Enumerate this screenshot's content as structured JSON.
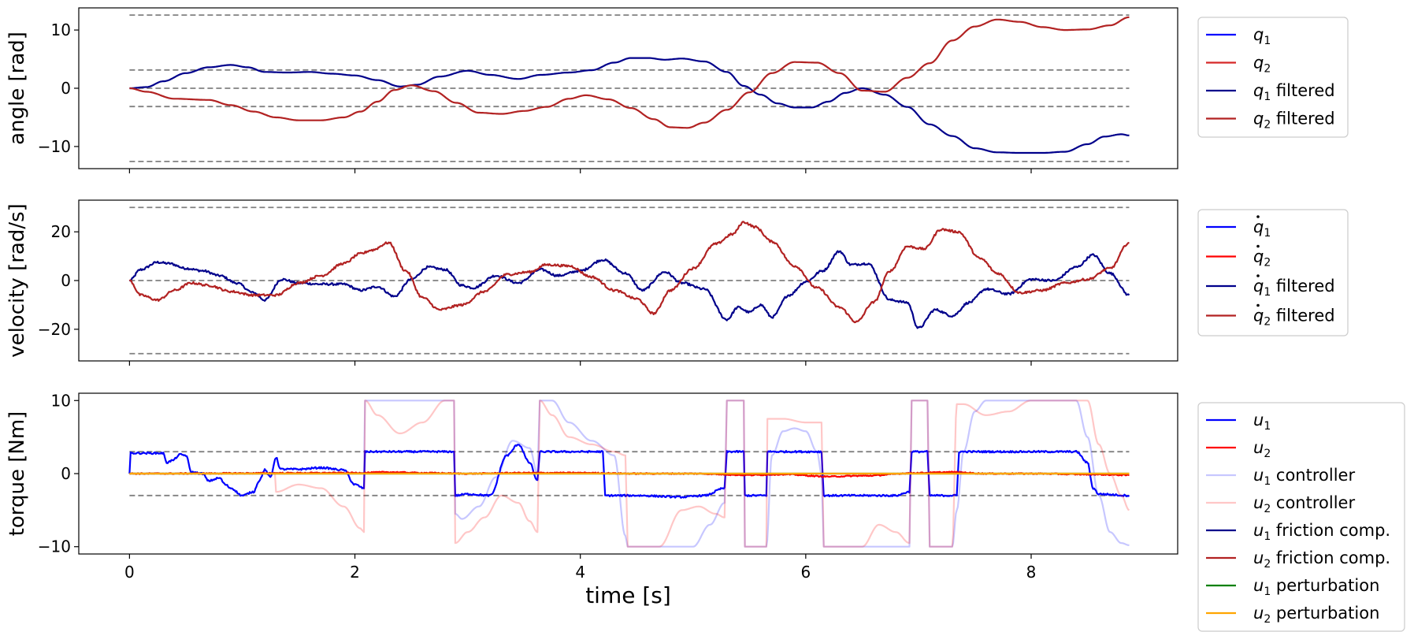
{
  "chart_data": [
    {
      "type": "line",
      "ylabel": "angle [rad]",
      "xlim": [
        -0.45,
        9.3
      ],
      "ylim": [
        -13.8,
        13.8
      ],
      "yticks": [
        -10,
        0,
        10
      ],
      "xticks": [
        0,
        2,
        4,
        6,
        8
      ],
      "show_xtick_labels": false,
      "legend": "outside-right",
      "hlines": [
        12.57,
        3.14,
        0,
        -3.14,
        -12.57
      ],
      "series": [
        {
          "name": "q1",
          "sym": "q",
          "sub": "1",
          "dot": false,
          "suffix": "",
          "color": "#0000ff",
          "alpha": 1,
          "legend_only": true
        },
        {
          "name": "q2",
          "sym": "q",
          "sub": "2",
          "dot": false,
          "suffix": "",
          "color": "#d62728",
          "alpha": 1,
          "legend_only": true
        },
        {
          "name": "q1 filtered",
          "sym": "q",
          "sub": "1",
          "dot": false,
          "suffix": " filtered",
          "color": "#00008b",
          "alpha": 1,
          "x": [
            0,
            0.15,
            0.3,
            0.5,
            0.7,
            0.9,
            1.05,
            1.2,
            1.4,
            1.6,
            1.8,
            2.0,
            2.2,
            2.4,
            2.55,
            2.75,
            3.0,
            3.2,
            3.45,
            3.65,
            3.9,
            4.1,
            4.3,
            4.45,
            4.6,
            4.75,
            4.9,
            5.1,
            5.3,
            5.45,
            5.6,
            5.75,
            5.9,
            6.05,
            6.2,
            6.35,
            6.5,
            6.7,
            6.9,
            7.1,
            7.3,
            7.5,
            7.7,
            7.9,
            8.1,
            8.3,
            8.5,
            8.65,
            8.8,
            8.87
          ],
          "y": [
            0,
            0.2,
            1.2,
            2.6,
            3.6,
            4.0,
            3.6,
            2.8,
            2.7,
            2.8,
            2.5,
            2.2,
            1.4,
            0.3,
            0.6,
            2.0,
            3.0,
            2.3,
            1.6,
            2.3,
            2.7,
            3.1,
            4.4,
            5.2,
            5.2,
            4.9,
            5.1,
            4.6,
            2.8,
            0.4,
            -1.1,
            -2.6,
            -3.3,
            -3.3,
            -2.3,
            -0.8,
            0,
            -1.1,
            -3.2,
            -6.2,
            -8.2,
            -10.3,
            -11.0,
            -11.1,
            -11.1,
            -10.9,
            -9.6,
            -8.3,
            -7.9,
            -8.1
          ]
        },
        {
          "name": "q2 filtered",
          "sym": "q",
          "sub": "2",
          "dot": false,
          "suffix": " filtered",
          "color": "#b22222",
          "alpha": 1,
          "x": [
            0,
            0.15,
            0.4,
            0.7,
            0.9,
            1.1,
            1.3,
            1.5,
            1.7,
            1.9,
            2.05,
            2.2,
            2.35,
            2.5,
            2.7,
            2.9,
            3.1,
            3.3,
            3.5,
            3.7,
            3.9,
            4.05,
            4.25,
            4.45,
            4.65,
            4.8,
            4.95,
            5.1,
            5.3,
            5.5,
            5.7,
            5.9,
            6.1,
            6.3,
            6.5,
            6.7,
            6.9,
            7.1,
            7.3,
            7.5,
            7.7,
            7.9,
            8.1,
            8.3,
            8.5,
            8.7,
            8.87
          ],
          "y": [
            0,
            -0.6,
            -1.8,
            -2.0,
            -2.9,
            -4.0,
            -5.0,
            -5.5,
            -5.5,
            -5.0,
            -4.0,
            -2.3,
            -0.3,
            0.5,
            -0.5,
            -2.5,
            -4.2,
            -4.4,
            -3.9,
            -3.2,
            -1.8,
            -1.2,
            -1.9,
            -3.4,
            -5.3,
            -6.7,
            -6.8,
            -5.9,
            -3.7,
            -0.7,
            2.6,
            4.5,
            4.4,
            2.6,
            -0.4,
            -0.6,
            1.8,
            4.3,
            8.2,
            10.6,
            11.8,
            11.4,
            10.5,
            10.0,
            10.1,
            10.8,
            12.2
          ]
        }
      ]
    },
    {
      "type": "line",
      "ylabel": "velocity [rad/s]",
      "xlim": [
        -0.45,
        9.3
      ],
      "ylim": [
        -33,
        33
      ],
      "yticks": [
        -20,
        0,
        20
      ],
      "xticks": [
        0,
        2,
        4,
        6,
        8
      ],
      "show_xtick_labels": false,
      "legend": "outside-right",
      "hlines": [
        30,
        0,
        -30
      ],
      "series": [
        {
          "name": "q̇1",
          "sym": "q",
          "sub": "1",
          "dot": true,
          "suffix": "",
          "color": "#0000ff",
          "alpha": 1,
          "legend_only": true
        },
        {
          "name": "q̇2",
          "sym": "q",
          "sub": "2",
          "dot": true,
          "suffix": "",
          "color": "#ff0000",
          "alpha": 1,
          "legend_only": true
        },
        {
          "name": "q̇1 filtered",
          "sym": "q",
          "sub": "1",
          "dot": true,
          "suffix": " filtered",
          "color": "#00008b",
          "alpha": 1,
          "jitter": 0.45,
          "x": [
            0,
            0.1,
            0.25,
            0.35,
            0.5,
            0.65,
            0.8,
            0.95,
            1.1,
            1.2,
            1.35,
            1.5,
            1.7,
            1.9,
            2.05,
            2.2,
            2.35,
            2.5,
            2.65,
            2.8,
            2.95,
            3.05,
            3.25,
            3.45,
            3.65,
            3.8,
            4.0,
            4.2,
            4.4,
            4.55,
            4.75,
            4.9,
            5.1,
            5.3,
            5.4,
            5.5,
            5.6,
            5.7,
            5.85,
            6.0,
            6.15,
            6.3,
            6.4,
            6.55,
            6.75,
            6.9,
            7.0,
            7.15,
            7.3,
            7.45,
            7.6,
            7.8,
            8.0,
            8.2,
            8.4,
            8.55,
            8.7,
            8.87
          ],
          "y": [
            0,
            4.5,
            7.5,
            7.0,
            5.0,
            4.0,
            2.0,
            -1.0,
            -5.0,
            -8.0,
            0.5,
            -1.0,
            -1.5,
            -1.5,
            -4.0,
            -2.5,
            -6.5,
            0.5,
            5.5,
            4.5,
            -2.0,
            -3.0,
            2.0,
            -1.0,
            4.5,
            2.0,
            4.0,
            8.5,
            3.0,
            -4.0,
            3.5,
            -1.0,
            -3.5,
            -16.0,
            -11.0,
            -13.0,
            -10.0,
            -15.0,
            -6.0,
            -0.5,
            4.0,
            12.0,
            6.5,
            7.0,
            -8.0,
            -9.0,
            -19.5,
            -12.0,
            -14.5,
            -9.0,
            -3.5,
            -5.5,
            0.5,
            0.0,
            5.5,
            10.5,
            3.0,
            -6.0
          ]
        },
        {
          "name": "q̇2 filtered",
          "sym": "q",
          "sub": "2",
          "dot": true,
          "suffix": " filtered",
          "color": "#b22222",
          "alpha": 1,
          "jitter": 0.45,
          "x": [
            0,
            0.1,
            0.25,
            0.4,
            0.55,
            0.7,
            0.9,
            1.1,
            1.3,
            1.5,
            1.7,
            1.9,
            2.05,
            2.15,
            2.3,
            2.45,
            2.6,
            2.75,
            2.95,
            3.15,
            3.35,
            3.55,
            3.7,
            3.9,
            4.1,
            4.3,
            4.5,
            4.65,
            4.8,
            5.0,
            5.2,
            5.35,
            5.45,
            5.55,
            5.7,
            5.9,
            6.1,
            6.3,
            6.45,
            6.6,
            6.75,
            6.9,
            7.05,
            7.2,
            7.35,
            7.55,
            7.7,
            7.9,
            8.1,
            8.3,
            8.5,
            8.7,
            8.87
          ],
          "y": [
            0,
            -6.0,
            -8.0,
            -4.0,
            -1.0,
            -2.0,
            -4.5,
            -6.0,
            -6.0,
            -1.0,
            2.0,
            7.0,
            11.0,
            12.5,
            15.5,
            4.0,
            -7.0,
            -12.0,
            -10.0,
            -4.5,
            2.5,
            3.5,
            6.5,
            6.0,
            1.5,
            -4.0,
            -7.5,
            -13.5,
            -4.0,
            5.0,
            15.0,
            19.0,
            24.0,
            22.0,
            16.0,
            6.0,
            -3.0,
            -11.0,
            -17.0,
            -9.0,
            4.0,
            14.0,
            13.0,
            21.0,
            20.0,
            9.0,
            3.0,
            -5.0,
            -4.0,
            -1.0,
            0.5,
            5.0,
            15.5
          ]
        }
      ]
    },
    {
      "type": "line",
      "ylabel": "torque [Nm]",
      "xlabel": "time [s]",
      "xlim": [
        -0.45,
        9.3
      ],
      "ylim": [
        -11,
        11
      ],
      "yticks": [
        -10,
        0,
        10
      ],
      "xticks": [
        0,
        2,
        4,
        6,
        8
      ],
      "show_xtick_labels": true,
      "legend": "outside-right",
      "hlines": [
        3,
        -3
      ],
      "series": [
        {
          "name": "u1",
          "sym": "u",
          "sub": "1",
          "dot": false,
          "suffix": "",
          "color": "#0000ff",
          "alpha": 1,
          "jitter": 0.12,
          "x": [
            0,
            0.01,
            0.3,
            0.33,
            0.38,
            0.45,
            0.5,
            0.55,
            0.65,
            0.7,
            0.8,
            0.85,
            0.9,
            1.0,
            1.1,
            1.15,
            1.2,
            1.25,
            1.3,
            1.34,
            1.5,
            1.7,
            1.9,
            2.0,
            2.08,
            2.09,
            2.88,
            2.89,
            3.0,
            3.2,
            3.35,
            3.45,
            3.55,
            3.62,
            3.64,
            4.2,
            4.22,
            4.5,
            4.9,
            5.1,
            5.28,
            5.3,
            5.45,
            5.46,
            5.6,
            5.65,
            5.66,
            6.14,
            6.16,
            6.4,
            6.8,
            6.92,
            6.94,
            7.08,
            7.1,
            7.3,
            7.34,
            7.36,
            8.0,
            8.4,
            8.5,
            8.55,
            8.6,
            8.87
          ],
          "y": [
            0,
            2.8,
            2.8,
            1.5,
            1.8,
            2.6,
            2.5,
            0.2,
            0.0,
            -1.0,
            -0.6,
            -1.5,
            -2.0,
            -3.0,
            -2.5,
            -1.0,
            0.5,
            -0.5,
            2.2,
            0.6,
            0.6,
            0.8,
            0.5,
            -1.5,
            -2.0,
            3.0,
            3.0,
            -3.0,
            -2.8,
            -3.0,
            2.5,
            4.0,
            1.5,
            -1.0,
            3.0,
            3.0,
            -3.0,
            -3.0,
            -3.2,
            -3.0,
            -2.0,
            3.0,
            3.0,
            -3.0,
            -3.0,
            -3.0,
            3.0,
            3.0,
            -3.0,
            -3.0,
            -3.0,
            -2.5,
            3.0,
            3.0,
            -3.0,
            -3.0,
            -3.0,
            3.0,
            3.0,
            3.0,
            1.5,
            -2.0,
            -2.8,
            -3.0
          ]
        },
        {
          "name": "u2",
          "sym": "u",
          "sub": "2",
          "dot": false,
          "suffix": "",
          "color": "#ff0000",
          "alpha": 1,
          "jitter": 0.08,
          "x": [
            0,
            2.0,
            2.3,
            2.6,
            3.0,
            3.5,
            4.0,
            4.5,
            5.0,
            5.5,
            5.8,
            6.2,
            6.5,
            7.0,
            7.3,
            7.6,
            8.0,
            8.5,
            8.87
          ],
          "y": [
            0,
            0.1,
            0.2,
            0.1,
            0.0,
            0.1,
            0.1,
            0.0,
            0.0,
            -0.2,
            -0.1,
            -0.4,
            -0.3,
            0.1,
            0.2,
            0.0,
            0.0,
            -0.1,
            -0.2
          ]
        },
        {
          "name": "u1 controller",
          "sym": "u",
          "sub": "1",
          "dot": false,
          "suffix": " controller",
          "color": "#0000ff",
          "alpha": 0.22,
          "x": [
            0,
            2.08,
            2.09,
            2.88,
            2.89,
            2.95,
            3.1,
            3.25,
            3.4,
            3.55,
            3.62,
            3.64,
            3.75,
            3.9,
            4.1,
            4.3,
            4.4,
            4.42,
            5.0,
            5.15,
            5.28,
            5.3,
            5.45,
            5.46,
            5.65,
            5.7,
            5.8,
            5.9,
            6.0,
            6.1,
            6.14,
            6.16,
            6.9,
            6.92,
            6.94,
            7.08,
            7.1,
            7.3,
            7.34,
            7.4,
            7.5,
            7.6,
            8.4,
            8.5,
            8.6,
            8.7,
            8.8,
            8.87
          ],
          "y": [
            0,
            0,
            10,
            10,
            -5.5,
            -6.2,
            -4.5,
            -0.5,
            4.5,
            3.5,
            0,
            10,
            10,
            7,
            4.5,
            2.5,
            -8.5,
            -10,
            -10,
            -7,
            -4,
            10,
            10,
            -10,
            -10,
            2.5,
            5.8,
            6.2,
            5.8,
            3.0,
            0,
            -10,
            -10,
            -10,
            10,
            10,
            -10,
            -10,
            -5,
            3.0,
            8.5,
            10,
            10,
            5,
            -3,
            -8,
            -9.5,
            -9.8
          ]
        },
        {
          "name": "u2 controller",
          "sym": "u",
          "sub": "2",
          "dot": false,
          "suffix": " controller",
          "color": "#ff0000",
          "alpha": 0.22,
          "x": [
            0,
            1.29,
            1.3,
            1.5,
            1.7,
            1.9,
            2.05,
            2.08,
            2.09,
            2.2,
            2.4,
            2.6,
            2.8,
            2.88,
            2.89,
            3.0,
            3.15,
            3.3,
            3.45,
            3.55,
            3.62,
            3.64,
            3.75,
            3.9,
            4.1,
            4.3,
            4.4,
            4.42,
            4.7,
            4.9,
            5.05,
            5.2,
            5.28,
            5.3,
            5.45,
            5.46,
            5.65,
            5.66,
            5.8,
            6.0,
            6.14,
            6.16,
            6.5,
            6.65,
            6.8,
            6.92,
            6.94,
            7.08,
            7.1,
            7.3,
            7.34,
            7.4,
            7.6,
            7.8,
            8.0,
            8.3,
            8.5,
            8.6,
            8.7,
            8.8,
            8.87
          ],
          "y": [
            0,
            0,
            -2.5,
            -1.5,
            -2.0,
            -4.5,
            -7.5,
            -8.0,
            10,
            8.0,
            5.5,
            7.0,
            10,
            10,
            -9.5,
            -8.0,
            -6.0,
            -3.0,
            -4.0,
            -6.5,
            -8.0,
            10,
            8.0,
            5.0,
            4.0,
            3.0,
            2.5,
            -10,
            -10,
            -5.0,
            -4.5,
            -5.5,
            -6.0,
            10,
            10,
            -10,
            -10,
            7.5,
            7.5,
            7.0,
            7.0,
            -10,
            -10,
            -7.0,
            -8.0,
            -9.5,
            10,
            10,
            -10,
            -10,
            9.5,
            9.5,
            8.0,
            8.5,
            10,
            10,
            10,
            4.0,
            0,
            -3.0,
            -5.0
          ]
        },
        {
          "name": "u1 friction comp.",
          "sym": "u",
          "sub": "1",
          "dot": false,
          "suffix": " friction comp.",
          "color": "#00008b",
          "alpha": 1,
          "legend_only": true
        },
        {
          "name": "u2 friction comp.",
          "sym": "u",
          "sub": "2",
          "dot": false,
          "suffix": " friction comp.",
          "color": "#b22222",
          "alpha": 1,
          "legend_only": true
        },
        {
          "name": "u1 perturbation",
          "sym": "u",
          "sub": "1",
          "dot": false,
          "suffix": " perturbation",
          "color": "#008000",
          "alpha": 1,
          "x": [
            0,
            8.87
          ],
          "y": [
            0,
            0
          ]
        },
        {
          "name": "u2 perturbation",
          "sym": "u",
          "sub": "2",
          "dot": false,
          "suffix": " perturbation",
          "color": "#ffa500",
          "alpha": 1,
          "x": [
            0,
            8.87
          ],
          "y": [
            0,
            0
          ]
        }
      ]
    }
  ]
}
